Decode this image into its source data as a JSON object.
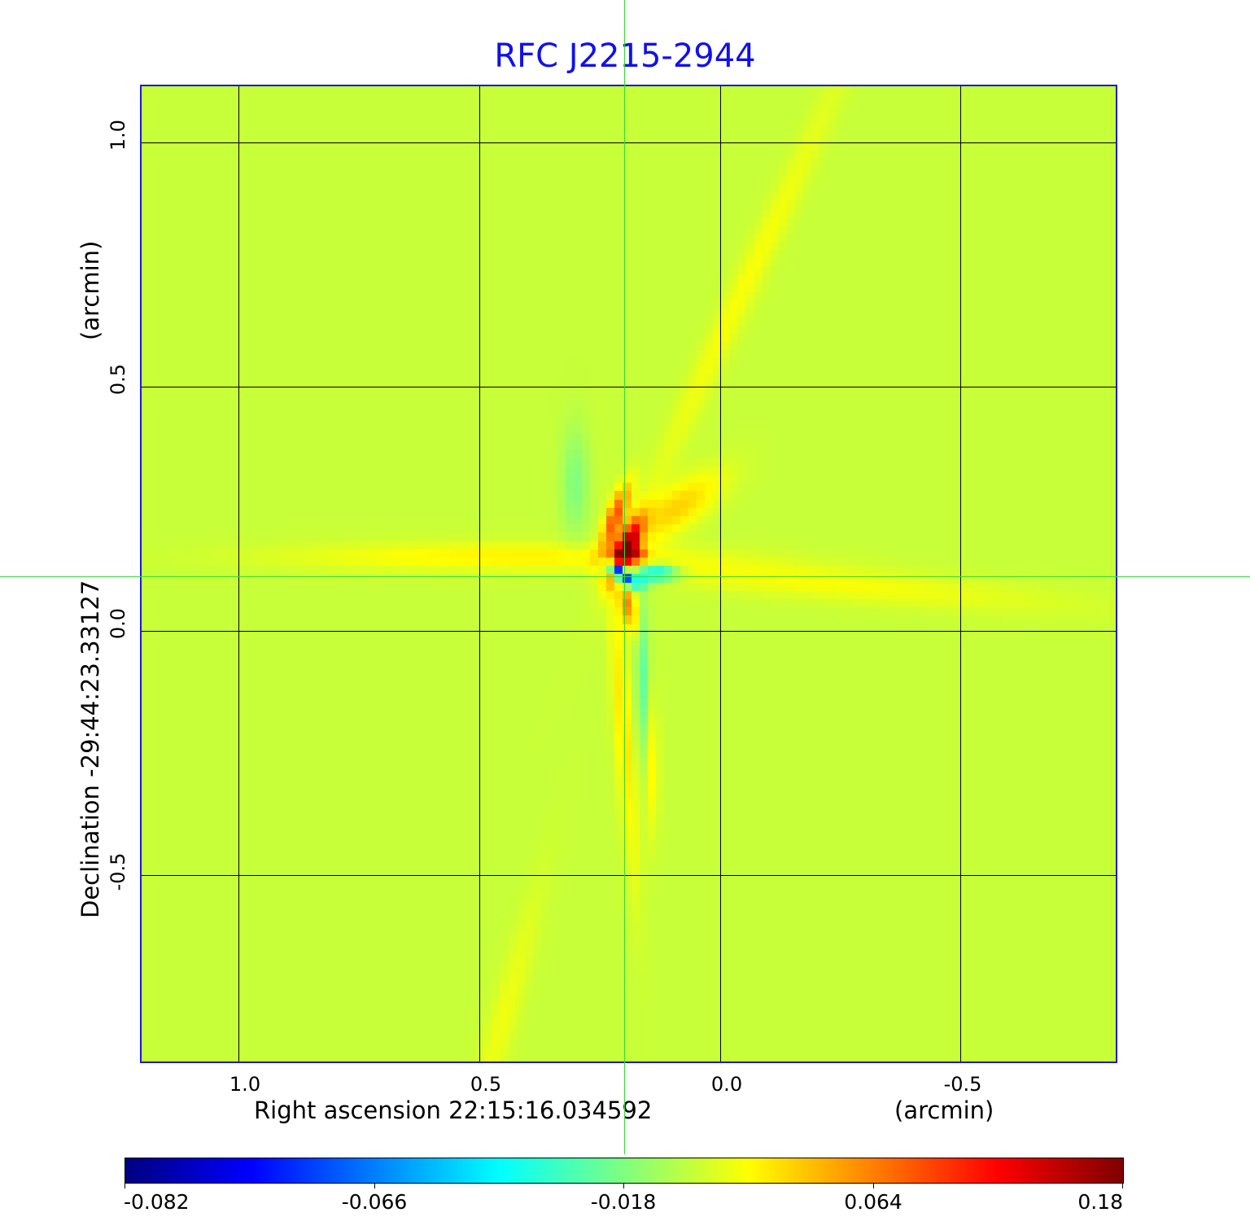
{
  "chart_data": {
    "type": "heatmap",
    "title": "RFC J2215-2944",
    "xlabel": "Right ascension  22:15:16.034592",
    "xunit": "(arcmin)",
    "ylabel": "Declination  -29:44:23.33127",
    "yunit": "(arcmin)",
    "xlim": [
      1.204,
      -0.824
    ],
    "ylim": [
      -0.885,
      1.118
    ],
    "xticks": [
      {
        "v": 1.0,
        "label": "1.0"
      },
      {
        "v": 0.5,
        "label": "0.5"
      },
      {
        "v": 0.0,
        "label": "0.0"
      },
      {
        "v": -0.5,
        "label": "-0.5"
      }
    ],
    "yticks": [
      {
        "v": 1.0,
        "label": "1.0"
      },
      {
        "v": 0.5,
        "label": "0.5"
      },
      {
        "v": 0.0,
        "label": "0.0"
      },
      {
        "v": -0.5,
        "label": "-0.5"
      }
    ],
    "grid": true,
    "crosshair": {
      "ra": 0.2,
      "dec": 0.112
    },
    "colormap": "jet",
    "colorbar": {
      "location": "bottom",
      "ticks": [
        {
          "f": 0.0,
          "label": "-0.082"
        },
        {
          "f": 0.25,
          "label": "-0.066"
        },
        {
          "f": 0.5,
          "label": "-0.018"
        },
        {
          "f": 0.75,
          "label": "0.064"
        },
        {
          "f": 1.0,
          "label": "0.18"
        }
      ]
    },
    "background_level": 0.57,
    "pixel_size_arcmin": 0.017,
    "features": [
      {
        "ra": 0.196,
        "dec": 0.165,
        "sra": 0.014,
        "sdec": 0.045,
        "rot": -25,
        "amp": 0.42
      },
      {
        "ra": 0.215,
        "dec": 0.235,
        "sra": 0.012,
        "sdec": 0.05,
        "rot": -20,
        "amp": 0.22
      },
      {
        "ra": 0.17,
        "dec": 0.155,
        "sra": 0.012,
        "sdec": 0.012,
        "rot": 0,
        "amp": 0.2
      },
      {
        "ra": 0.21,
        "dec": 0.122,
        "sra": 0.009,
        "sdec": 0.009,
        "rot": 0,
        "amp": -0.62
      },
      {
        "ra": 0.196,
        "dec": 0.108,
        "sra": 0.008,
        "sdec": 0.008,
        "rot": 0,
        "amp": -0.35
      },
      {
        "ra": 0.225,
        "dec": 0.13,
        "sra": 0.012,
        "sdec": 0.012,
        "rot": 0,
        "amp": -0.25
      },
      {
        "ra": 0.13,
        "dec": 0.118,
        "sra": 0.03,
        "sdec": 0.012,
        "rot": 0,
        "amp": -0.22
      },
      {
        "ra": 0.18,
        "dec": 0.098,
        "sra": 0.02,
        "sdec": 0.01,
        "rot": 0,
        "amp": -0.2
      },
      {
        "ra": 0.19,
        "dec": 0.05,
        "sra": 0.011,
        "sdec": 0.035,
        "rot": 10,
        "amp": 0.17
      },
      {
        "ra": 0.2,
        "dec": -0.2,
        "sra": 0.013,
        "sdec": 0.22,
        "rot": 4,
        "amp": 0.08
      },
      {
        "ra": 0.16,
        "dec": -0.1,
        "sra": 0.01,
        "sdec": 0.11,
        "rot": 0,
        "amp": -0.1
      },
      {
        "ra": 0.14,
        "dec": -0.28,
        "sra": 0.01,
        "sdec": 0.1,
        "rot": 0,
        "amp": 0.06
      },
      {
        "ra": 0.5,
        "dec": 0.15,
        "sra": 0.3,
        "sdec": 0.02,
        "rot": 0,
        "amp": 0.06
      },
      {
        "ra": -0.2,
        "dec": 0.1,
        "sra": 0.35,
        "sdec": 0.025,
        "rot": -5,
        "amp": 0.05
      },
      {
        "ra": 0.09,
        "dec": 0.25,
        "sra": 0.08,
        "sdec": 0.03,
        "rot": 35,
        "amp": 0.1
      },
      {
        "ra": -0.05,
        "dec": 0.7,
        "sra": 0.02,
        "sdec": 0.35,
        "rot": -25,
        "amp": 0.05
      },
      {
        "ra": 0.3,
        "dec": 0.3,
        "sra": 0.02,
        "sdec": 0.08,
        "rot": 0,
        "amp": -0.07
      },
      {
        "ra": 0.45,
        "dec": -0.8,
        "sra": 0.02,
        "sdec": 0.2,
        "rot": -15,
        "amp": 0.04
      }
    ]
  }
}
